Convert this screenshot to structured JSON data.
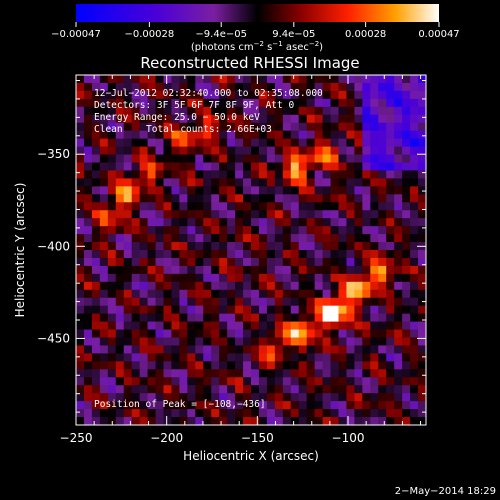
{
  "chart_data": {
    "type": "heatmap",
    "title": "Reconstructed RHESSI Image",
    "xlabel": "Heliocentric X (arcsec)",
    "ylabel": "Heliocentric Y (arcsec)",
    "xlim": [
      -250,
      -57
    ],
    "ylim": [
      -497,
      -307
    ],
    "xticks": [
      -250,
      -200,
      -150,
      -100
    ],
    "xtick_labels": [
      "−250",
      "−200",
      "−150",
      "−100"
    ],
    "yticks": [
      -350,
      -400,
      -450
    ],
    "ytick_labels": [
      "−350",
      "−400",
      "−450"
    ],
    "colorbar": {
      "range": [
        -0.00047,
        0.00047
      ],
      "ticks": [
        -0.00047,
        -0.00028,
        -9.4e-05,
        9.4e-05,
        0.00028,
        0.00047
      ],
      "tick_labels": [
        "−0.00047",
        "−0.00028",
        "−9.4e−05",
        "9.4e−05",
        "0.00028",
        "0.00047"
      ],
      "units_prefix": "(photons cm",
      "units_exp1": "−2",
      "units_mid": " s",
      "units_exp2": "−1",
      "units_mid2": " asec",
      "units_exp3": "−2",
      "units_suffix": ")"
    },
    "annotations": {
      "time_range": "12−Jul−2012 02:32:40.000 to 02:35:08.000",
      "detectors": "Detectors: 3F 5F 6F 7F 8F 9F, Att 0",
      "energy": "Energy Range: 25.0 − 50.0 keV",
      "method": "Clean",
      "counts": "Total counts: 2.66E+03",
      "peak": "Position of Peak = [−108,−436]"
    },
    "peak": [
      -108,
      -436
    ],
    "bright_sources": [
      {
        "x": -108,
        "y": -436,
        "v": 1.0
      },
      {
        "x": -95,
        "y": -424,
        "v": 0.8
      },
      {
        "x": -125,
        "y": -446,
        "v": 0.75
      },
      {
        "x": -82,
        "y": -414,
        "v": 0.65
      },
      {
        "x": -140,
        "y": -455,
        "v": 0.55
      },
      {
        "x": -128,
        "y": -357,
        "v": 0.7
      },
      {
        "x": -112,
        "y": -350,
        "v": 0.5
      },
      {
        "x": -222,
        "y": -372,
        "v": 0.6
      },
      {
        "x": -210,
        "y": -360,
        "v": 0.45
      },
      {
        "x": -232,
        "y": -385,
        "v": 0.45
      },
      {
        "x": -190,
        "y": -343,
        "v": 0.5
      },
      {
        "x": -175,
        "y": -335,
        "v": 0.4
      }
    ]
  },
  "footer": {
    "date": "2−May−2014 18:29"
  }
}
